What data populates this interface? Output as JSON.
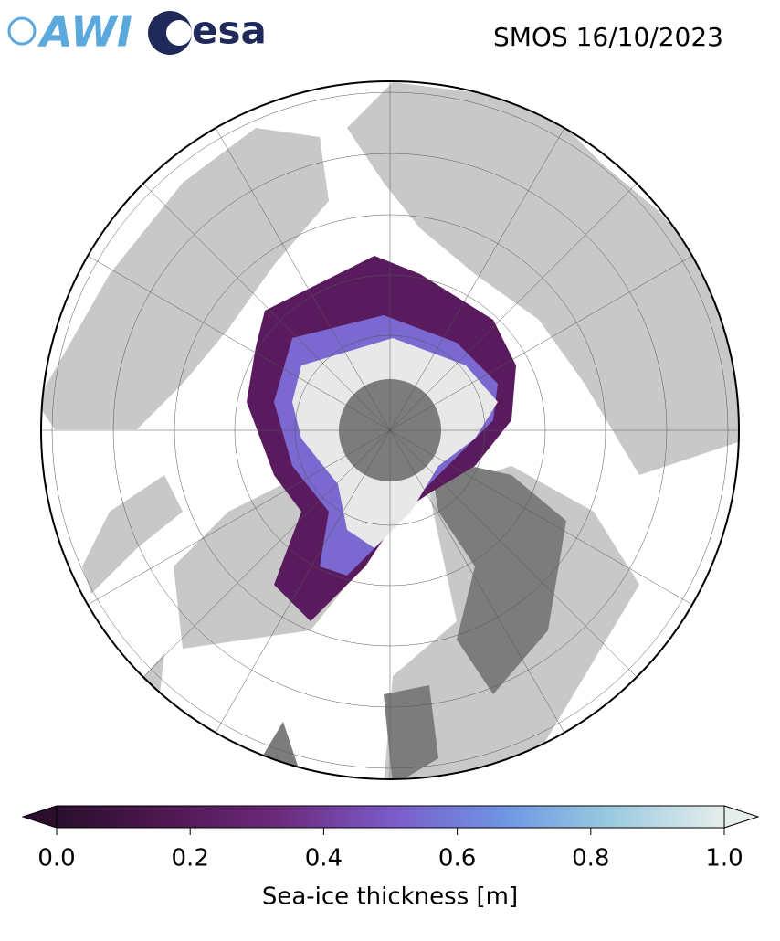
{
  "header": {
    "logos": [
      "AWI",
      "esa"
    ],
    "title": "SMOS 16/10/2023"
  },
  "colorbar": {
    "label": "Sea-ice thickness [m]",
    "lim": [
      0,
      1
    ],
    "ticks": [
      {
        "value": 0,
        "label": "0.0"
      },
      0.2,
      0.4,
      0.6,
      0.8,
      {
        "value": 1,
        "label": "1.0"
      }
    ],
    "colors": [
      "#2a0e2c",
      "#4f1852",
      "#6c2a7c",
      "#7b5ac8",
      "#6f94e4",
      "#9ccbe0",
      "#e6eeec"
    ]
  }
}
